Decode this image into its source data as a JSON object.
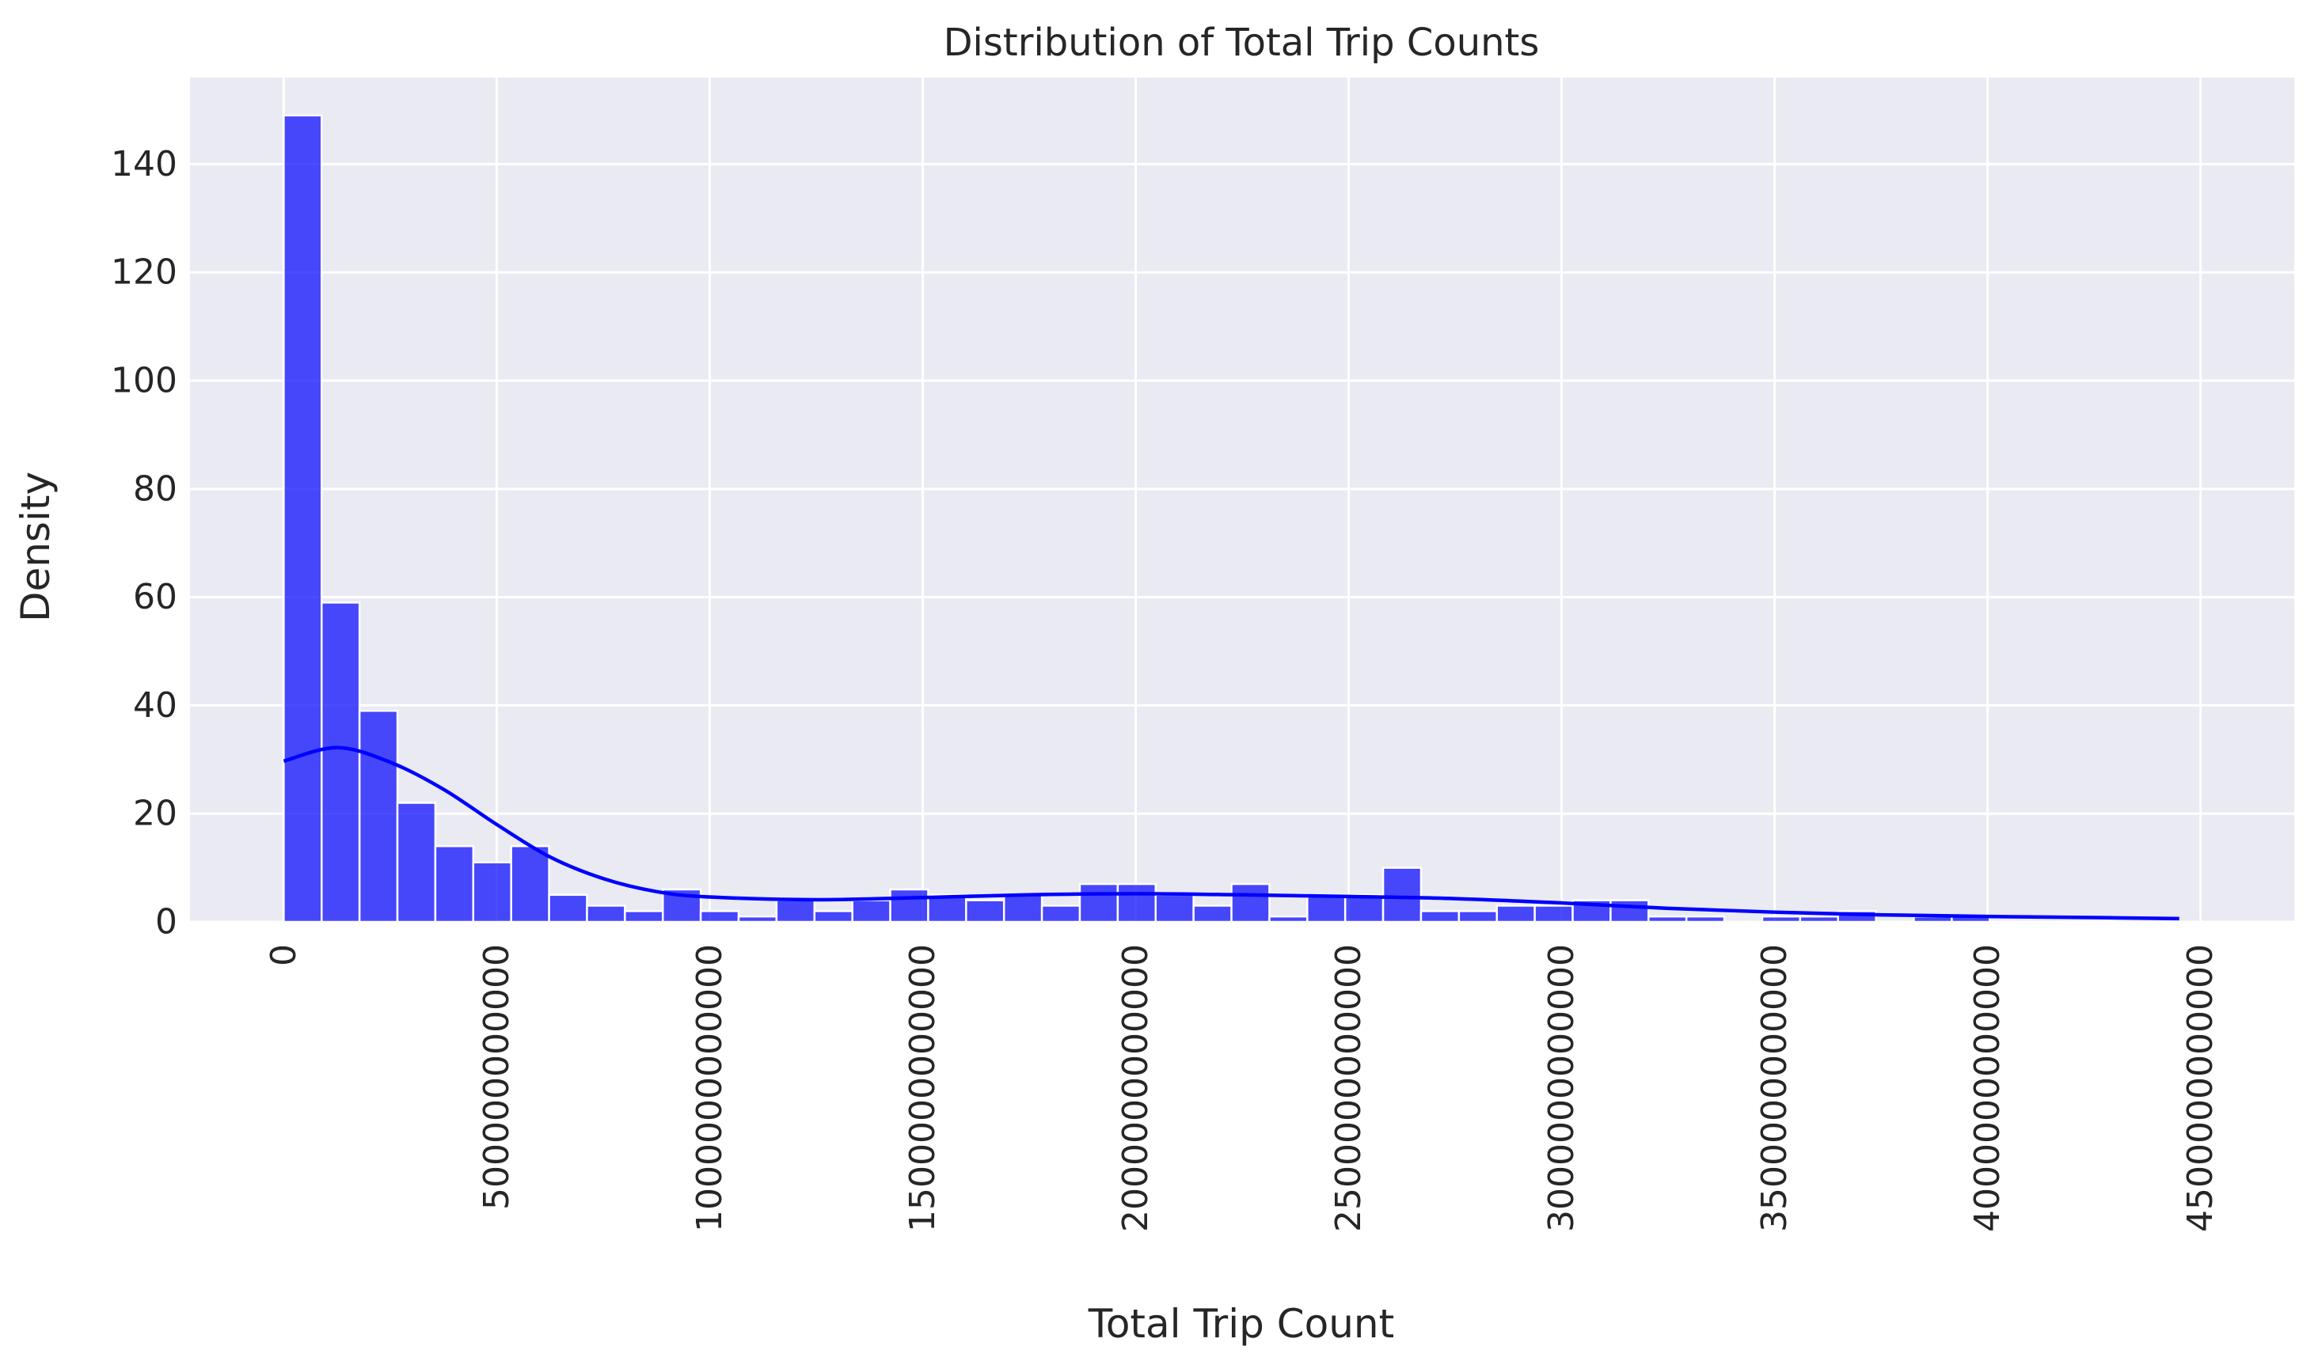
{
  "chart_data": {
    "type": "bar",
    "title": "Distribution of Total Trip Counts",
    "xlabel": "Total Trip Count",
    "ylabel": "Density",
    "x_tick_labels": [
      "0",
      "500000000000",
      "1000000000000",
      "1500000000000",
      "2000000000000",
      "2500000000000",
      "3000000000000",
      "3500000000000",
      "4000000000000",
      "4500000000000"
    ],
    "x_ticks": [
      0,
      500000000000,
      1000000000000,
      1500000000000,
      2000000000000,
      2500000000000,
      3000000000000,
      3500000000000,
      4000000000000,
      4500000000000
    ],
    "y_tick_labels": [
      "0",
      "20",
      "40",
      "60",
      "80",
      "100",
      "120",
      "140"
    ],
    "y_ticks": [
      0,
      20,
      40,
      60,
      80,
      100,
      120,
      140
    ],
    "xlim": [
      -220000000000,
      4720000000000
    ],
    "ylim": [
      0,
      156
    ],
    "bin_start": 0,
    "bin_width": 89000000000,
    "values": [
      149,
      59,
      39,
      22,
      14,
      11,
      14,
      5,
      3,
      2,
      6,
      2,
      1,
      4,
      2,
      4,
      6,
      5,
      4,
      5,
      3,
      7,
      7,
      5,
      3,
      7,
      1,
      5,
      5,
      10,
      2,
      2,
      3,
      3,
      4,
      4,
      1,
      1,
      0,
      1,
      1,
      2,
      0,
      1,
      1,
      0
    ],
    "kde": {
      "x": [
        0,
        125000000000,
        250000000000,
        375000000000,
        500000000000,
        625000000000,
        750000000000,
        875000000000,
        1000000000000,
        1250000000000,
        1500000000000,
        1750000000000,
        2000000000000,
        2250000000000,
        2500000000000,
        2750000000000,
        3000000000000,
        3250000000000,
        3500000000000,
        3750000000000,
        4000000000000,
        4250000000000,
        4450000000000
      ],
      "y": [
        29.7,
        32.2,
        29.5,
        24.5,
        18.0,
        12.0,
        8.0,
        5.6,
        4.6,
        4.1,
        4.5,
        5.0,
        5.2,
        5.0,
        4.7,
        4.3,
        3.5,
        2.5,
        1.8,
        1.3,
        1.0,
        0.8,
        0.6
      ]
    },
    "grid": true,
    "colors": {
      "bar": "#0000ff",
      "kde": "#0000ff",
      "plot_background": "#eaeaf2",
      "grid": "#ffffff"
    }
  }
}
